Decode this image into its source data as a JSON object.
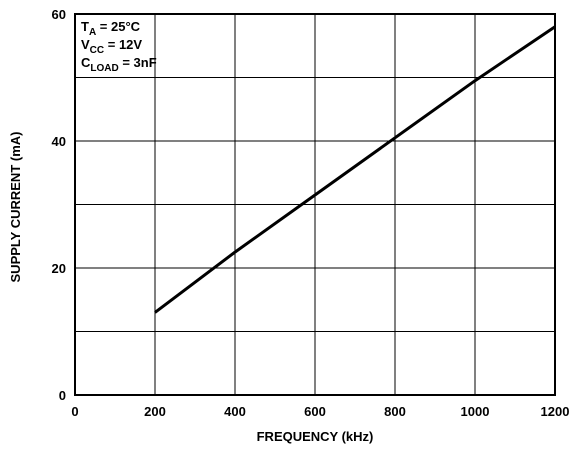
{
  "chart_data": {
    "type": "line",
    "title": "",
    "xlabel": "FREQUENCY (kHz)",
    "ylabel": "SUPPLY CURRENT (mA)",
    "xlim": [
      0,
      1200
    ],
    "ylim": [
      0,
      60
    ],
    "x_ticks": [
      0,
      200,
      400,
      600,
      800,
      1000,
      1200
    ],
    "y_ticks": [
      0,
      20,
      40,
      60
    ],
    "x_tick_labels": [
      "0",
      "200",
      "400",
      "600",
      "800",
      "1000",
      "1200"
    ],
    "y_tick_labels": [
      "0",
      "20",
      "40",
      "60"
    ],
    "grid": true,
    "x_gridlines": [
      0,
      200,
      400,
      600,
      800,
      1000,
      1200
    ],
    "y_gridlines": [
      0,
      10,
      20,
      30,
      40,
      50,
      60
    ],
    "series": [
      {
        "x": [
          200,
          400,
          600,
          800,
          1000,
          1200
        ],
        "y": [
          13,
          22.5,
          31.5,
          40.5,
          49.5,
          58
        ]
      }
    ],
    "annotations": {
      "conditions": [
        {
          "main": "T",
          "sub": "A",
          "rest": " = 25°C"
        },
        {
          "main": "V",
          "sub": "CC",
          "rest": " = 12V"
        },
        {
          "main": "C",
          "sub": "LOAD",
          "rest": " = 3nF"
        }
      ]
    }
  }
}
